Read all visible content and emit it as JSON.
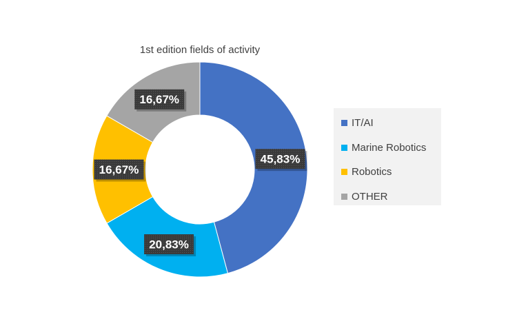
{
  "chart_data": {
    "type": "pie",
    "donut": true,
    "title": "1st edition fields of activity",
    "categories": [
      "IT/AI",
      "Marine Robotics",
      "Robotics",
      "OTHER"
    ],
    "values": [
      45.83,
      20.83,
      16.67,
      16.67
    ],
    "value_labels": [
      "45,83%",
      "20,83%",
      "16,67%",
      "16,67%"
    ],
    "colors": [
      "#4472c4",
      "#00b0f0",
      "#ffc000",
      "#a5a5a5"
    ],
    "legend_position": "right"
  }
}
